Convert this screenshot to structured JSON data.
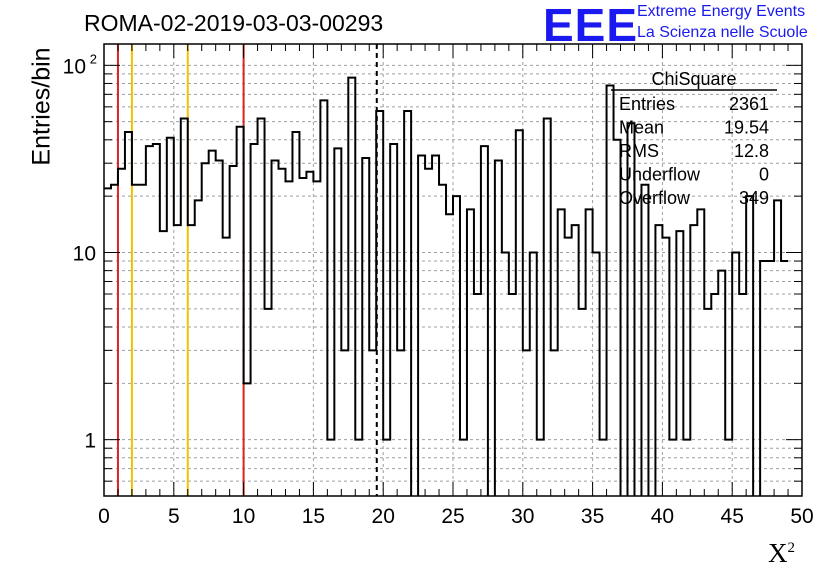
{
  "chart_data": {
    "type": "bar",
    "title": "ROMA-02-2019-03-03-00293",
    "ylabel": "Entries/bin",
    "xlabel_base": "X",
    "xlabel_sup": "2",
    "xlim": [
      0,
      50
    ],
    "ylim": [
      0.5,
      130
    ],
    "yscale": "log",
    "grid": true,
    "bin_width": 0.5,
    "x_ticks": [
      "0",
      "5",
      "10",
      "15",
      "20",
      "25",
      "30",
      "35",
      "40",
      "45",
      "50"
    ],
    "y_ticks": [
      "1",
      "10",
      "10"
    ],
    "y_tick_sup": "2",
    "values": [
      22,
      23,
      28,
      44,
      23,
      23,
      37,
      38,
      13,
      41,
      14,
      52,
      14,
      19,
      30,
      35,
      31,
      12,
      29,
      47,
      2,
      38,
      52,
      5,
      31,
      28,
      24,
      44,
      25,
      27,
      24,
      65,
      1,
      36,
      3,
      86,
      1,
      32,
      3,
      57,
      1,
      38,
      3,
      57,
      0,
      33,
      28,
      33,
      23,
      16,
      20,
      1,
      17,
      6,
      37,
      0,
      31,
      10,
      6,
      45,
      3,
      10,
      1,
      52,
      3,
      17,
      12,
      14,
      5,
      17,
      10,
      1,
      78,
      40,
      0,
      49,
      0,
      23,
      0,
      14,
      12,
      1,
      13,
      1,
      14,
      17,
      5,
      6,
      8,
      1,
      10,
      6,
      20,
      0,
      9,
      9
    ],
    "entries_after_49": 19,
    "last_bin": 9,
    "vlines": [
      {
        "x": 1,
        "color": "#dd2222"
      },
      {
        "x": 2,
        "color": "#f2c200"
      },
      {
        "x": 6,
        "color": "#f2c200"
      },
      {
        "x": 10,
        "color": "#dd2222"
      }
    ],
    "dashed_line_x": 19.54,
    "stats": {
      "title": "ChiSquare",
      "rows": [
        {
          "label": "Entries",
          "value": "2361"
        },
        {
          "label": "Mean",
          "value": "19.54"
        },
        {
          "label": "RMS",
          "value": "12.8"
        },
        {
          "label": "Underflow",
          "value": "0"
        },
        {
          "label": "Overflow",
          "value": "349"
        }
      ]
    }
  },
  "logo": {
    "mark": "EEE",
    "line1": "Extreme Energy Events",
    "line2": "La Scienza nelle Scuole"
  }
}
